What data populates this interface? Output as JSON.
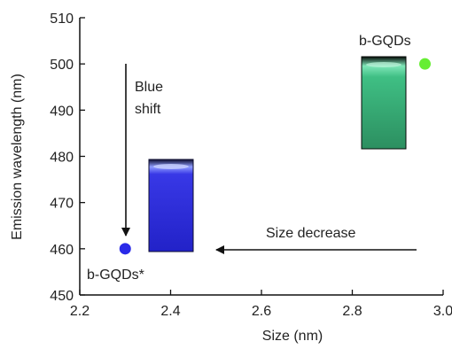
{
  "chart_data": {
    "type": "scatter",
    "xlabel": "Size (nm)",
    "ylabel": "Emission wavelength (nm)",
    "xlim": [
      2.2,
      3.0
    ],
    "ylim": [
      450,
      510
    ],
    "x_ticks": [
      "2.2",
      "2.4",
      "2.6",
      "2.8",
      "3.0"
    ],
    "y_ticks": [
      "450",
      "460",
      "470",
      "480",
      "490",
      "500",
      "510"
    ],
    "grid": false,
    "points": [
      {
        "label": "b-GQDs*",
        "x": 2.3,
        "y": 460,
        "color": "#2a2ae8"
      },
      {
        "label": "b-GQDs",
        "x": 2.96,
        "y": 500,
        "color": "#66ee33"
      }
    ],
    "annotations": {
      "blue_shift_line1": "Blue",
      "blue_shift_line2": "shift",
      "size_decrease": "Size decrease"
    },
    "vial_colors": {
      "blue": "#3a3ae0",
      "green": "#3fbf84"
    }
  }
}
